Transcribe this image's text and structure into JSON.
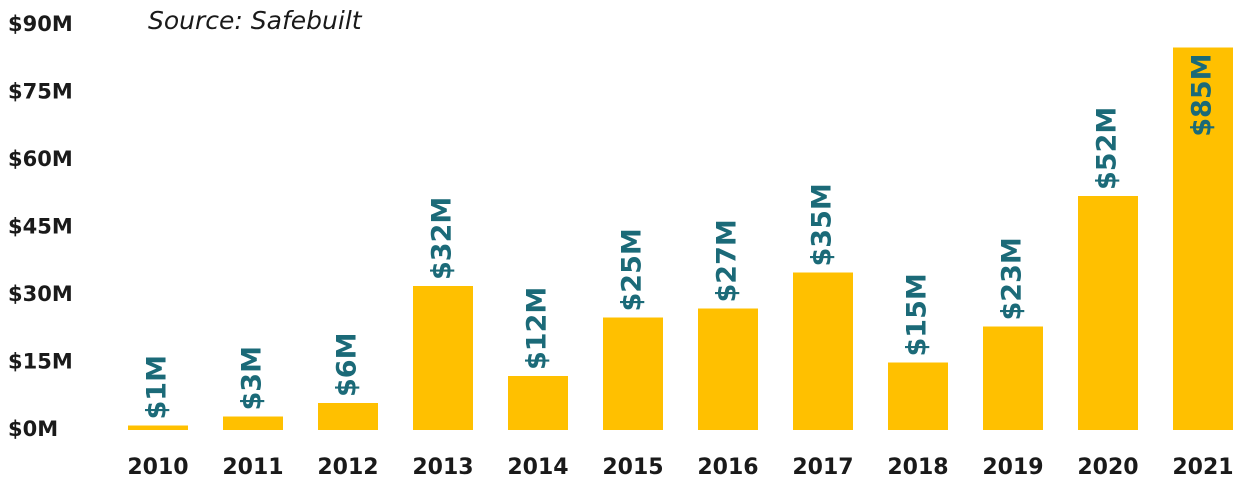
{
  "chart_data": {
    "type": "bar",
    "title": "Source: Safebuilt",
    "categories": [
      "2010",
      "2011",
      "2012",
      "2013",
      "2014",
      "2015",
      "2016",
      "2017",
      "2018",
      "2019",
      "2020",
      "2021"
    ],
    "values": [
      1,
      3,
      6,
      32,
      12,
      25,
      27,
      35,
      15,
      23,
      52,
      85
    ],
    "value_labels": [
      "$1M",
      "$3M",
      "$6M",
      "$32M",
      "$12M",
      "$25M",
      "$27M",
      "$35M",
      "$15M",
      "$23M",
      "$52M",
      "$85M"
    ],
    "color": "#ffc000",
    "label_color": "#1b6a78",
    "ylim": [
      0,
      90
    ],
    "yticks": [
      {
        "value": 0,
        "label": "$0M"
      },
      {
        "value": 15,
        "label": "$15M"
      },
      {
        "value": 30,
        "label": "$30M"
      },
      {
        "value": 45,
        "label": "$45M"
      },
      {
        "value": 60,
        "label": "$60M"
      },
      {
        "value": 75,
        "label": "$75M"
      },
      {
        "value": 90,
        "label": "$90M"
      }
    ],
    "grid": false
  }
}
